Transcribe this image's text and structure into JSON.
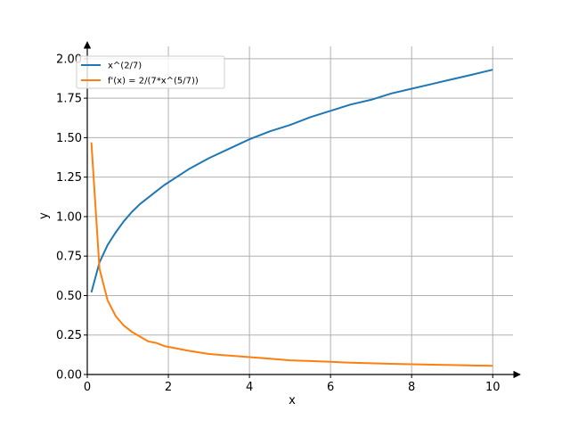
{
  "chart_data": {
    "type": "line",
    "xlabel": "x",
    "ylabel": "y",
    "xlim": [
      0,
      10.5
    ],
    "ylim": [
      0,
      2.05
    ],
    "xticks": [
      0,
      2,
      4,
      6,
      8,
      10
    ],
    "xtick_labels": [
      "0",
      "2",
      "4",
      "6",
      "8",
      "10"
    ],
    "yticks": [
      0,
      0.25,
      0.5,
      0.75,
      1.0,
      1.25,
      1.5,
      1.75,
      2.0
    ],
    "ytick_labels": [
      "0.00",
      "0.25",
      "0.50",
      "0.75",
      "1.00",
      "1.25",
      "1.50",
      "1.75",
      "2.00"
    ],
    "grid": true,
    "legend_position": "top-left",
    "series": [
      {
        "name": "x^(2/7)",
        "color": "#1f77b4",
        "x": [
          0.1,
          0.3,
          0.5,
          0.7,
          0.9,
          1.1,
          1.3,
          1.5,
          1.7,
          1.9,
          2.5,
          3.0,
          3.5,
          4.0,
          4.5,
          5.0,
          5.5,
          6.0,
          6.5,
          7.0,
          7.5,
          8.0,
          8.5,
          9.0,
          9.5,
          10.0
        ],
        "y": [
          0.52,
          0.71,
          0.82,
          0.9,
          0.97,
          1.03,
          1.08,
          1.12,
          1.16,
          1.2,
          1.3,
          1.37,
          1.43,
          1.49,
          1.54,
          1.58,
          1.63,
          1.67,
          1.71,
          1.74,
          1.78,
          1.81,
          1.84,
          1.87,
          1.9,
          1.93
        ]
      },
      {
        "name": "f'(x) = 2/(7*x^(5/7))",
        "color": "#ff7f0e",
        "x": [
          0.1,
          0.3,
          0.5,
          0.7,
          0.9,
          1.1,
          1.3,
          1.5,
          1.7,
          1.9,
          2.5,
          3.0,
          3.5,
          4.0,
          4.5,
          5.0,
          5.5,
          6.0,
          6.5,
          7.0,
          7.5,
          8.0,
          8.5,
          9.0,
          9.5,
          10.0
        ],
        "y": [
          1.47,
          0.67,
          0.47,
          0.37,
          0.31,
          0.27,
          0.24,
          0.21,
          0.2,
          0.18,
          0.15,
          0.13,
          0.12,
          0.11,
          0.1,
          0.09,
          0.085,
          0.08,
          0.075,
          0.071,
          0.068,
          0.065,
          0.062,
          0.06,
          0.057,
          0.055
        ]
      }
    ]
  }
}
